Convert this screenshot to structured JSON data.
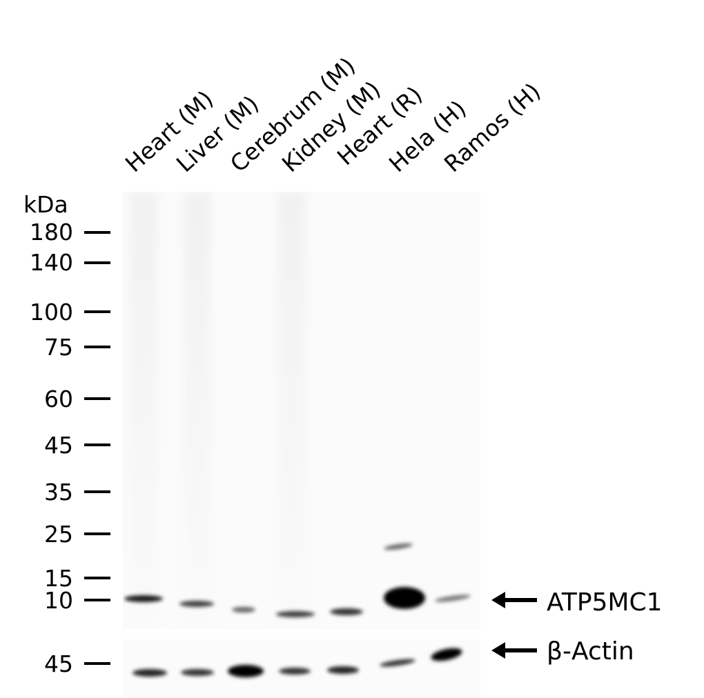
{
  "lanes": [
    "Heart (M)",
    "Liver (M)",
    "Cerebrum (M)",
    "Kidney (M)",
    "Heart (R)",
    "Hela (H)",
    "Ramos (H)"
  ],
  "mw_unit": "kDa",
  "markers_upper": [
    "180",
    "140",
    "100",
    "75",
    "60",
    "45",
    "35",
    "25",
    "15",
    "10"
  ],
  "markers_lower": [
    "45"
  ],
  "targets": {
    "upper": "ATP5MC1",
    "lower": "β-Actin"
  }
}
